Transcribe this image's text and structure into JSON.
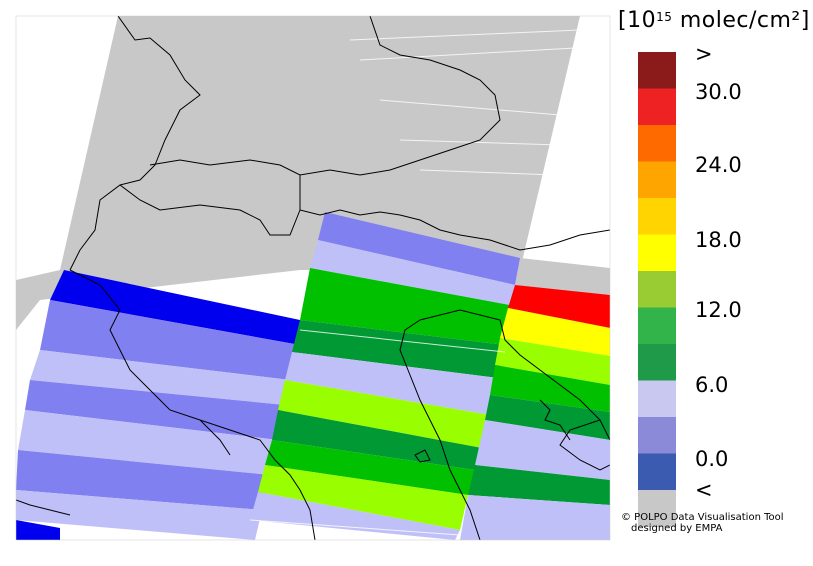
{
  "legend": {
    "units_prefix": "[10",
    "units_exponent": "15",
    "units_suffix": " molec/cm²]",
    "labels": [
      ">",
      "30.0",
      "24.0",
      "18.0",
      "12.0",
      "6.0",
      "0.0",
      "<"
    ],
    "scale_colors": [
      "#8b1a1a",
      "#ee2222",
      "#ff6a00",
      "#ffa500",
      "#ffd400",
      "#ffff00",
      "#99cc33",
      "#33b44a",
      "#1f9a48",
      "#c8c8f0",
      "#8a8ad8",
      "#3a5bb0",
      "#c8c8c8"
    ]
  },
  "credit": {
    "line1": "© POLPO Data Visualisation Tool",
    "line2": "designed by EMPA"
  },
  "colors": {
    "no_data": "#c8c8c8",
    "swath_blue_dark": "#0000ee",
    "swath_blue_mid": "#8080f0",
    "swath_blue_light": "#c0c0f8",
    "swath_green_light": "#99ff00",
    "swath_green_mid": "#00c000",
    "swath_green_dark": "#009933",
    "swath_yellow": "#ffff00",
    "swath_red": "#ff0000"
  }
}
